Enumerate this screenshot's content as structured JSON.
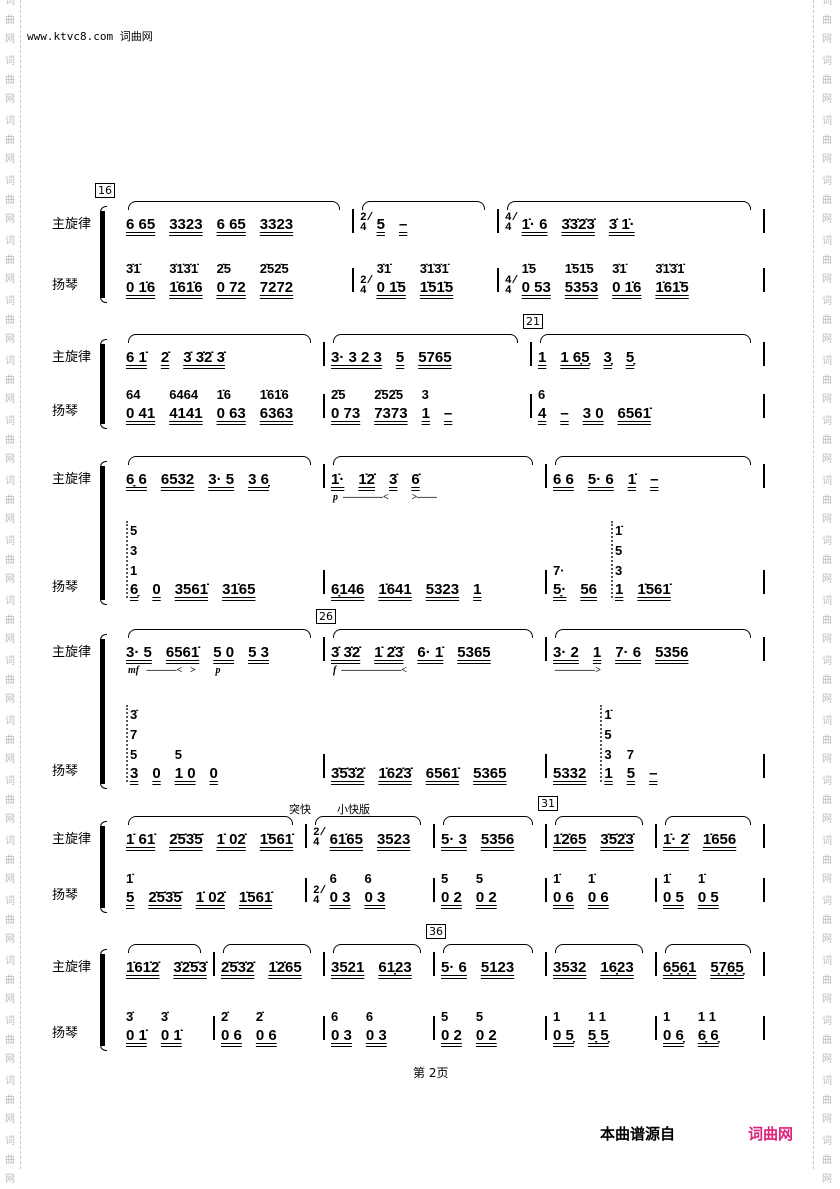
{
  "header": {
    "site": "www.ktvc8.com 词曲网"
  },
  "watermark": "词曲网",
  "parts": {
    "melody": "主旋律",
    "yangqin": "扬琴"
  },
  "systems": [
    {
      "number": "16",
      "measures": [
        {
          "melody": [
            "6 65",
            "3323",
            "6 65",
            "3323"
          ],
          "yangqin": [
            {
              "n": "0 1̇6",
              "above": [
                "3̇1̇"
              ]
            },
            {
              "n": "1̇61̇6",
              "above": [
                "3̇1̇3̇1̇"
              ]
            },
            {
              "n": "0 72",
              "above": [
                "2̇5"
              ]
            },
            {
              "n": "7272",
              "above": [
                "2̇52̇5"
              ]
            }
          ]
        },
        {
          "time": "2/4",
          "melody": [
            "5",
            "–"
          ],
          "yangqin": [
            {
              "n": "0 1̇5",
              "above": [
                "3̇1̇"
              ]
            },
            {
              "n": "1̇51̇5",
              "above": [
                "3̇1̇3̇1̇"
              ]
            }
          ]
        },
        {
          "time": "4/4",
          "melody": [
            "1̇· 6",
            "3̇3̇2̇3̇",
            "3̇ 1̇·"
          ],
          "yangqin": [
            {
              "n": "0 53",
              "above": [
                "1̇5"
              ]
            },
            {
              "n": "5353",
              "above": [
                "1̇51̇5"
              ]
            },
            {
              "n": "0 1̇6",
              "above": [
                "3̇1̇"
              ]
            },
            {
              "n": "1̇61̇5",
              "above": [
                "3̇1̇3̇1̇"
              ]
            }
          ]
        }
      ]
    },
    {
      "measures": [
        {
          "melody": [
            "6 1̇",
            "2̇",
            "3̇ 3̇2̇ 3̇"
          ],
          "yangqin": [
            {
              "n": "0 41",
              "above": [
                "64"
              ]
            },
            {
              "n": "4141",
              "above": [
                "6464"
              ]
            },
            {
              "n": "0 63",
              "above": [
                "1̇6"
              ]
            },
            {
              "n": "6363",
              "above": [
                "1̇61̇6"
              ]
            }
          ]
        },
        {
          "melody": [
            "3· 3 2 3",
            "5",
            "5765"
          ],
          "yangqin": [
            {
              "n": "0 73",
              "above": [
                "2̇5"
              ]
            },
            {
              "n": "7373",
              "above": [
                "2̇52̇5"
              ]
            },
            {
              "n": "1",
              "above": [
                "3"
              ]
            },
            {
              "n": "–"
            }
          ]
        },
        {
          "number": "21",
          "melody": [
            "1",
            "1 6̣5̣",
            "3̣",
            "5̣"
          ],
          "yangqin": [
            {
              "n": "4",
              "above": [
                "6"
              ]
            },
            {
              "n": "–"
            },
            {
              "n": "3 0"
            },
            {
              "n": "6561̇"
            }
          ]
        }
      ]
    },
    {
      "measures": [
        {
          "melody": [
            "6̣ 6",
            "6532",
            "3· 5",
            "3 6̣"
          ],
          "yangqin": [
            {
              "n": "6̣",
              "above": [
                "1",
                "3",
                "5"
              ],
              "arpeggio": true
            },
            {
              "n": "0"
            },
            {
              "n": "3561̇"
            },
            {
              "n": "31̇65"
            }
          ]
        },
        {
          "melody": [
            "1̇·",
            "1̇2̇",
            "3̇",
            "6̇"
          ],
          "dynamics": "p  ————<         >——",
          "yangqin": [
            {
              "n": "6̣146"
            },
            {
              "n": "1̇641"
            },
            {
              "n": "5323"
            },
            {
              "n": "1"
            }
          ]
        },
        {
          "melody": [
            "6 6",
            "5· 6",
            "1̇",
            "–"
          ],
          "yangqin": [
            {
              "n": "5̣·",
              "above": [
                "7·"
              ]
            },
            {
              "n": "56"
            },
            {
              "n": "1",
              "above": [
                "3",
                "5",
                "1̇"
              ],
              "arpeggio": true
            },
            {
              "n": "1̇561̇"
            }
          ]
        }
      ]
    },
    {
      "measures": [
        {
          "melody": [
            "3· 5",
            "6561̇",
            "5 0",
            "5 3"
          ],
          "dynamics": "mf   ———<   >        p",
          "yangqin": [
            {
              "n": "3",
              "above": [
                "5",
                "7",
                "3̇"
              ],
              "arpeggio": true
            },
            {
              "n": "0"
            },
            {
              "n": "1 0",
              "above": [
                "5"
              ]
            },
            {
              "n": "0"
            }
          ]
        },
        {
          "number": "26",
          "melody": [
            "3̇ 3̇2̇",
            "1̇ 2̇3̇",
            "6· 1̇",
            "5365"
          ],
          "dynamics": "f  ——————<",
          "yangqin": [
            {
              "n": "3̇5̇3̇2̇"
            },
            {
              "n": "1̇62̇3̇"
            },
            {
              "n": "6561̇"
            },
            {
              "n": "5365"
            }
          ]
        },
        {
          "melody": [
            "3· 2",
            "1",
            "7· 6",
            "5356"
          ],
          "dynamics": "————>",
          "yangqin": [
            {
              "n": "5332"
            },
            {
              "n": "1",
              "above": [
                "3",
                "5",
                "1̇"
              ],
              "arpeggio": true
            },
            {
              "n": "5",
              "above": [
                "7"
              ]
            },
            {
              "n": "–"
            }
          ]
        }
      ]
    },
    {
      "measures": [
        {
          "melody": [
            "1̇ 61̇",
            "2̇5̇3̇5̇",
            "1̇ 02̇",
            "1̇561̇"
          ],
          "yangqin": [
            {
              "n": "5",
              "above": [
                "1̇"
              ]
            },
            {
              "n": "2̇5̇3̇5̇"
            },
            {
              "n": "1̇ 02̇"
            },
            {
              "n": "1̇561̇"
            }
          ]
        },
        {
          "time": "2/4",
          "tempo": [
            "突快",
            "小快版"
          ],
          "melody": [
            "61̇65",
            "3523"
          ],
          "yangqin": [
            {
              "n": "0 3",
              "above": [
                "6"
              ]
            },
            {
              "n": "0 3",
              "above": [
                "6"
              ]
            }
          ]
        },
        {
          "melody": [
            "5· 3",
            "5356"
          ],
          "yangqin": [
            {
              "n": "0 2",
              "above": [
                "5"
              ]
            },
            {
              "n": "0 2",
              "above": [
                "5"
              ]
            }
          ]
        },
        {
          "number": "31",
          "melody": [
            "1̇2̇65",
            "3̇5̇2̇3̇"
          ],
          "yangqin": [
            {
              "n": "0 6",
              "above": [
                "1̇"
              ]
            },
            {
              "n": "0 6",
              "above": [
                "1̇"
              ]
            }
          ]
        },
        {
          "melody": [
            "1̇· 2̇",
            "1̇656"
          ],
          "yangqin": [
            {
              "n": "0 5",
              "above": [
                "1̇"
              ]
            },
            {
              "n": "0 5",
              "above": [
                "1̇"
              ]
            }
          ]
        }
      ]
    },
    {
      "measures": [
        {
          "melody": [
            "1̇61̇2̇",
            "3̇2̇5̇3̇"
          ],
          "yangqin": [
            {
              "n": "0 1̇",
              "above": [
                "3̇"
              ]
            },
            {
              "n": "0 1̇",
              "above": [
                "3̇"
              ]
            }
          ]
        },
        {
          "melody": [
            "2̇5̇3̇2̇",
            "1̇2̇65"
          ],
          "yangqin": [
            {
              "n": "0 6",
              "above": [
                "2̇"
              ]
            },
            {
              "n": "0 6",
              "above": [
                "2̇"
              ]
            }
          ]
        },
        {
          "melody": [
            "3521",
            "61̣23"
          ],
          "yangqin": [
            {
              "n": "0 3",
              "above": [
                "6"
              ]
            },
            {
              "n": "0 3",
              "above": [
                "6"
              ]
            }
          ]
        },
        {
          "number": "36",
          "melody": [
            "5· 6",
            "5123"
          ],
          "yangqin": [
            {
              "n": "0 2",
              "above": [
                "5"
              ]
            },
            {
              "n": "0 2",
              "above": [
                "5"
              ]
            }
          ]
        },
        {
          "melody": [
            "3532",
            "16̣23"
          ],
          "yangqin": [
            {
              "n": "0 5̣",
              "above": [
                "1"
              ]
            },
            {
              "n": "5̣ 5̣",
              "above": [
                "1 1"
              ]
            }
          ]
        },
        {
          "melody": [
            "6̣5̣6̣1",
            "5̣7̣6̣5̣"
          ],
          "yangqin": [
            {
              "n": "0 6̣",
              "above": [
                "1"
              ]
            },
            {
              "n": "6̣ 6̣",
              "above": [
                "1 1"
              ]
            }
          ]
        }
      ]
    }
  ],
  "footer": {
    "page": "第 2页",
    "source": "本曲谱源自",
    "brand": "词曲网",
    "brand_color": "#e0207a"
  }
}
